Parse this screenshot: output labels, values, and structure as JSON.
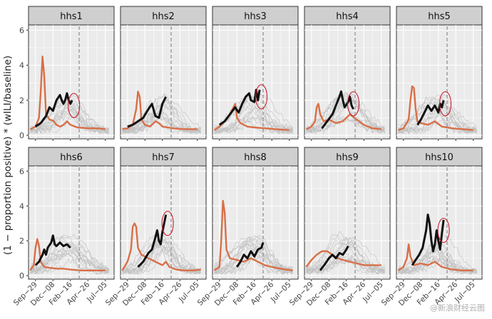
{
  "ylabel": "(1 − proportion positive) * (wILI/baseline)",
  "watermark": "@新浪财经云图",
  "chart_data": {
    "type": "line",
    "panel_count": 10,
    "panels": [
      "hhs1",
      "hhs2",
      "hhs3",
      "hhs4",
      "hhs5",
      "hhs6",
      "hhs7",
      "hhs8",
      "hhs9",
      "hhs10"
    ],
    "x_tick_labels": [
      "Sep−29",
      "Dec−08",
      "Feb−16",
      "Apr−26",
      "Jul−05"
    ],
    "x_tick_weeks": [
      0,
      10,
      20,
      30,
      40
    ],
    "xlim": [
      -4,
      45
    ],
    "y_ticks": [
      0,
      2,
      4,
      6
    ],
    "ylim": [
      -0.2,
      6.3
    ],
    "dashed_line_week": 25,
    "grid": true,
    "colors": {
      "current_season": "#111111",
      "highlight_season": "#d86f47",
      "past_seasons": "#c0c0c0",
      "dashed": "#9a9a9a",
      "circle": "#c8202e",
      "strip_bg": "#cfcfcf",
      "panel_bg": "#ebebeb",
      "grid": "#ffffff"
    },
    "series": [
      {
        "panel": "hhs1",
        "black": [
          [
            0,
            0.5
          ],
          [
            3,
            0.7
          ],
          [
            6,
            1.1
          ],
          [
            8,
            1.6
          ],
          [
            10,
            1.4
          ],
          [
            12,
            2.0
          ],
          [
            14,
            2.3
          ],
          [
            15,
            2.0
          ],
          [
            16,
            1.8
          ],
          [
            17,
            2.0
          ],
          [
            18,
            2.4
          ],
          [
            19,
            2.0
          ],
          [
            20,
            1.8
          ],
          [
            21,
            2.0
          ]
        ],
        "orange": [
          [
            -3,
            0.35
          ],
          [
            0,
            0.5
          ],
          [
            2,
            1.0
          ],
          [
            3,
            2.5
          ],
          [
            4,
            4.5
          ],
          [
            5,
            3.4
          ],
          [
            6,
            1.2
          ],
          [
            8,
            0.9
          ],
          [
            10,
            0.85
          ],
          [
            12,
            0.6
          ],
          [
            14,
            0.5
          ],
          [
            16,
            0.6
          ],
          [
            18,
            0.8
          ],
          [
            20,
            0.6
          ],
          [
            24,
            0.45
          ],
          [
            30,
            0.4
          ],
          [
            36,
            0.4
          ],
          [
            40,
            0.35
          ]
        ],
        "circle": [
          22,
          1.7
        ]
      },
      {
        "panel": "hhs2",
        "black": [
          [
            0,
            0.5
          ],
          [
            3,
            0.6
          ],
          [
            6,
            0.8
          ],
          [
            9,
            1.0
          ],
          [
            12,
            1.5
          ],
          [
            14,
            1.8
          ],
          [
            16,
            1.1
          ],
          [
            18,
            1.0
          ],
          [
            20,
            1.8
          ],
          [
            22,
            2.2
          ]
        ],
        "orange": [
          [
            -3,
            0.35
          ],
          [
            0,
            0.4
          ],
          [
            3,
            0.6
          ],
          [
            5,
            1.5
          ],
          [
            6,
            2.5
          ],
          [
            7,
            2.2
          ],
          [
            8,
            0.9
          ],
          [
            10,
            0.6
          ],
          [
            13,
            0.5
          ],
          [
            16,
            0.8
          ],
          [
            18,
            0.7
          ],
          [
            20,
            0.5
          ],
          [
            26,
            0.4
          ],
          [
            32,
            0.35
          ],
          [
            40,
            0.35
          ]
        ]
      },
      {
        "panel": "hhs3",
        "black": [
          [
            0,
            0.6
          ],
          [
            3,
            0.8
          ],
          [
            6,
            1.2
          ],
          [
            9,
            1.6
          ],
          [
            11,
            1.3
          ],
          [
            13,
            1.8
          ],
          [
            15,
            2.2
          ],
          [
            17,
            2.4
          ],
          [
            18,
            2.0
          ],
          [
            20,
            1.9
          ],
          [
            21,
            2.6
          ],
          [
            22,
            2.0
          ],
          [
            23,
            2.6
          ]
        ],
        "orange": [
          [
            -3,
            0.3
          ],
          [
            0,
            0.5
          ],
          [
            3,
            0.8
          ],
          [
            6,
            1.2
          ],
          [
            8,
            1.6
          ],
          [
            9,
            1.8
          ],
          [
            10,
            1.0
          ],
          [
            12,
            0.7
          ],
          [
            16,
            0.5
          ],
          [
            20,
            0.45
          ],
          [
            26,
            0.4
          ],
          [
            32,
            0.35
          ],
          [
            40,
            0.3
          ]
        ],
        "circle": [
          24,
          2.2
        ]
      },
      {
        "panel": "hhs4",
        "black": [
          [
            6,
            0.4
          ],
          [
            9,
            0.8
          ],
          [
            12,
            1.2
          ],
          [
            14,
            1.7
          ],
          [
            16,
            2.2
          ],
          [
            17,
            2.5
          ],
          [
            18,
            2.0
          ],
          [
            19,
            1.6
          ],
          [
            21,
            1.9
          ],
          [
            22,
            2.2
          ],
          [
            23,
            1.7
          ],
          [
            24,
            1.5
          ]
        ],
        "orange": [
          [
            -3,
            0.35
          ],
          [
            0,
            0.5
          ],
          [
            2,
            0.8
          ],
          [
            3,
            1.6
          ],
          [
            4,
            1.8
          ],
          [
            5,
            1.2
          ],
          [
            7,
            0.8
          ],
          [
            10,
            0.9
          ],
          [
            14,
            0.7
          ],
          [
            18,
            0.8
          ],
          [
            22,
            1.2
          ],
          [
            26,
            0.9
          ],
          [
            30,
            0.6
          ],
          [
            35,
            0.4
          ],
          [
            40,
            0.35
          ]
        ],
        "circle": [
          24,
          1.8
        ]
      },
      {
        "panel": "hhs5",
        "black": [
          [
            8,
            0.6
          ],
          [
            10,
            0.9
          ],
          [
            12,
            1.3
          ],
          [
            14,
            1.7
          ],
          [
            16,
            1.4
          ],
          [
            18,
            1.7
          ],
          [
            20,
            1.3
          ],
          [
            21,
            1.8
          ],
          [
            22,
            1.6
          ],
          [
            23,
            2.0
          ]
        ],
        "orange": [
          [
            -3,
            0.3
          ],
          [
            0,
            0.4
          ],
          [
            3,
            0.9
          ],
          [
            4,
            2.0
          ],
          [
            5,
            2.8
          ],
          [
            6,
            2.7
          ],
          [
            7,
            1.5
          ],
          [
            8,
            0.8
          ],
          [
            10,
            0.7
          ],
          [
            14,
            0.6
          ],
          [
            18,
            0.8
          ],
          [
            22,
            0.5
          ],
          [
            28,
            0.4
          ],
          [
            34,
            0.35
          ],
          [
            40,
            0.3
          ]
        ],
        "circle": [
          24,
          1.8
        ]
      },
      {
        "panel": "hhs6",
        "black": [
          [
            0,
            0.6
          ],
          [
            2,
            0.8
          ],
          [
            4,
            1.2
          ],
          [
            5,
            1.5
          ],
          [
            6,
            1.2
          ],
          [
            7,
            1.6
          ],
          [
            9,
            1.9
          ],
          [
            10,
            2.3
          ],
          [
            11,
            1.8
          ],
          [
            12,
            1.7
          ],
          [
            14,
            1.9
          ],
          [
            16,
            1.7
          ],
          [
            18,
            1.8
          ],
          [
            20,
            1.6
          ]
        ],
        "orange": [
          [
            -3,
            0.3
          ],
          [
            -1,
            0.6
          ],
          [
            0,
            1.6
          ],
          [
            1,
            2.1
          ],
          [
            2,
            1.7
          ],
          [
            3,
            0.8
          ],
          [
            5,
            0.5
          ],
          [
            8,
            0.45
          ],
          [
            12,
            0.4
          ],
          [
            16,
            0.4
          ],
          [
            20,
            0.35
          ],
          [
            26,
            0.3
          ],
          [
            32,
            0.3
          ],
          [
            40,
            0.3
          ]
        ]
      },
      {
        "panel": "hhs7",
        "black": [
          [
            6,
            0.5
          ],
          [
            9,
            0.8
          ],
          [
            12,
            1.3
          ],
          [
            14,
            1.5
          ],
          [
            16,
            2.2
          ],
          [
            17,
            2.6
          ],
          [
            18,
            2.0
          ],
          [
            19,
            1.8
          ],
          [
            20,
            2.5
          ],
          [
            21,
            3.0
          ],
          [
            22,
            3.5
          ]
        ],
        "orange": [
          [
            -3,
            0.3
          ],
          [
            0,
            0.8
          ],
          [
            2,
            1.5
          ],
          [
            3,
            2.8
          ],
          [
            4,
            3.0
          ],
          [
            5,
            2.8
          ],
          [
            6,
            1.6
          ],
          [
            8,
            1.2
          ],
          [
            12,
            1.0
          ],
          [
            16,
            0.8
          ],
          [
            20,
            0.6
          ],
          [
            22,
            0.8
          ],
          [
            24,
            0.5
          ],
          [
            28,
            0.35
          ],
          [
            32,
            0.3
          ],
          [
            38,
            0.3
          ],
          [
            42,
            0.35
          ]
        ],
        "circle": [
          23,
          3.0
        ]
      },
      {
        "panel": "hhs8",
        "black": [
          [
            10,
            0.5
          ],
          [
            12,
            0.8
          ],
          [
            14,
            1.2
          ],
          [
            16,
            1.0
          ],
          [
            18,
            1.4
          ],
          [
            20,
            1.1
          ],
          [
            22,
            1.5
          ],
          [
            24,
            1.6
          ],
          [
            25,
            1.9
          ]
        ],
        "orange": [
          [
            -3,
            0.3
          ],
          [
            0,
            0.5
          ],
          [
            1,
            2.0
          ],
          [
            2,
            4.3
          ],
          [
            3,
            3.6
          ],
          [
            4,
            1.5
          ],
          [
            6,
            1.0
          ],
          [
            10,
            0.9
          ],
          [
            14,
            0.8
          ],
          [
            18,
            1.0
          ],
          [
            22,
            0.8
          ],
          [
            26,
            0.6
          ],
          [
            32,
            0.45
          ],
          [
            38,
            0.35
          ],
          [
            42,
            0.3
          ]
        ]
      },
      {
        "panel": "hhs9",
        "black": [
          [
            5,
            0.3
          ],
          [
            8,
            0.7
          ],
          [
            10,
            1.0
          ],
          [
            12,
            1.2
          ],
          [
            14,
            1.0
          ],
          [
            16,
            1.3
          ],
          [
            18,
            1.2
          ],
          [
            20,
            1.5
          ],
          [
            21,
            1.7
          ]
        ],
        "orange": [
          [
            -3,
            0.5
          ],
          [
            0,
            0.9
          ],
          [
            3,
            1.2
          ],
          [
            6,
            1.4
          ],
          [
            9,
            1.4
          ],
          [
            12,
            1.2
          ],
          [
            15,
            1.0
          ],
          [
            18,
            0.9
          ],
          [
            22,
            0.8
          ],
          [
            26,
            0.7
          ],
          [
            30,
            0.6
          ],
          [
            36,
            0.6
          ],
          [
            40,
            0.6
          ]
        ]
      },
      {
        "panel": "hhs10",
        "black": [
          [
            5,
            0.6
          ],
          [
            7,
            0.9
          ],
          [
            9,
            1.2
          ],
          [
            11,
            1.6
          ],
          [
            13,
            2.6
          ],
          [
            14,
            3.5
          ],
          [
            15,
            3.0
          ],
          [
            16,
            2.0
          ],
          [
            17,
            1.4
          ],
          [
            18,
            1.8
          ],
          [
            19,
            2.6
          ],
          [
            20,
            2.0
          ],
          [
            21,
            1.5
          ],
          [
            22,
            2.4
          ],
          [
            23,
            3.2
          ]
        ],
        "orange": [
          [
            -3,
            0.3
          ],
          [
            0,
            0.5
          ],
          [
            2,
            1.0
          ],
          [
            3,
            1.8
          ],
          [
            4,
            1.1
          ],
          [
            6,
            0.6
          ],
          [
            10,
            0.7
          ],
          [
            14,
            0.6
          ],
          [
            18,
            0.8
          ],
          [
            22,
            0.5
          ],
          [
            28,
            0.35
          ],
          [
            34,
            0.3
          ],
          [
            40,
            0.3
          ]
        ],
        "circle": [
          23,
          2.6
        ]
      }
    ]
  }
}
